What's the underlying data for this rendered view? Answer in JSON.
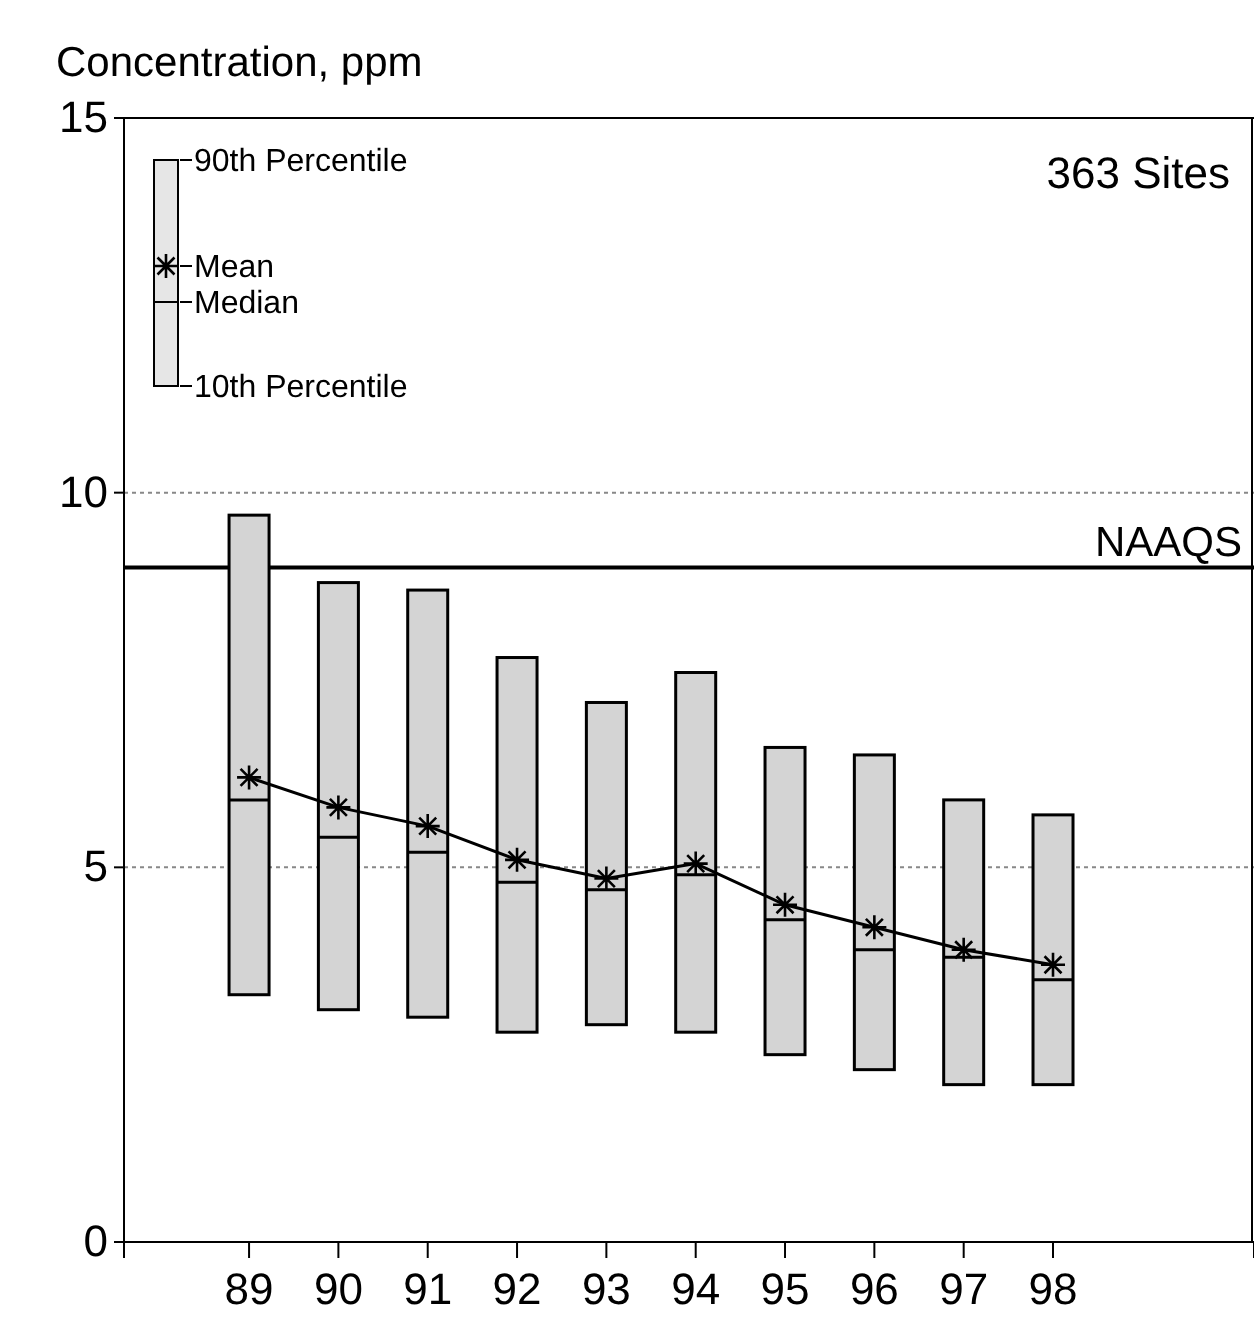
{
  "chart_data": {
    "type": "box",
    "ylabel": "Concentration, ppm",
    "categories": [
      "89",
      "90",
      "91",
      "92",
      "93",
      "94",
      "95",
      "96",
      "97",
      "98"
    ],
    "ylim": [
      0,
      15
    ],
    "yticks": [
      0,
      5,
      10,
      15
    ],
    "grid": "y",
    "series": [
      {
        "color": "#d4d4d4",
        "boxes": [
          {
            "low": 3.3,
            "q1": 3.3,
            "median": 5.9,
            "q3": 9.7,
            "high": 9.7
          },
          {
            "low": 3.1,
            "q1": 3.1,
            "median": 5.4,
            "q3": 8.8,
            "high": 8.8
          },
          {
            "low": 3.0,
            "q1": 3.0,
            "median": 5.2,
            "q3": 8.7,
            "high": 8.7
          },
          {
            "low": 2.8,
            "q1": 2.8,
            "median": 4.8,
            "q3": 7.8,
            "high": 7.8
          },
          {
            "low": 2.9,
            "q1": 2.9,
            "median": 4.7,
            "q3": 7.2,
            "high": 7.2
          },
          {
            "low": 2.8,
            "q1": 2.8,
            "median": 4.9,
            "q3": 7.6,
            "high": 7.6
          },
          {
            "low": 2.5,
            "q1": 2.5,
            "median": 4.3,
            "q3": 6.6,
            "high": 6.6
          },
          {
            "low": 2.3,
            "q1": 2.3,
            "median": 3.9,
            "q3": 6.5,
            "high": 6.5
          },
          {
            "low": 2.1,
            "q1": 2.1,
            "median": 3.8,
            "q3": 5.9,
            "high": 5.9
          },
          {
            "low": 2.1,
            "q1": 2.1,
            "median": 3.5,
            "q3": 5.7,
            "high": 5.7
          }
        ]
      },
      {
        "type": "line",
        "color": "#000000",
        "marker": "cross",
        "values": [
          6.2,
          5.8,
          5.55,
          5.1,
          4.85,
          5.05,
          4.5,
          4.2,
          3.9,
          3.7
        ]
      }
    ],
    "ref_lines": [
      {
        "axis": "y",
        "value": 9,
        "label": "NAAQS",
        "color": "#000000"
      }
    ],
    "annotations": [
      "363 Sites",
      "90th Percentile",
      "Mean",
      "Median",
      "10th Percentile"
    ]
  }
}
